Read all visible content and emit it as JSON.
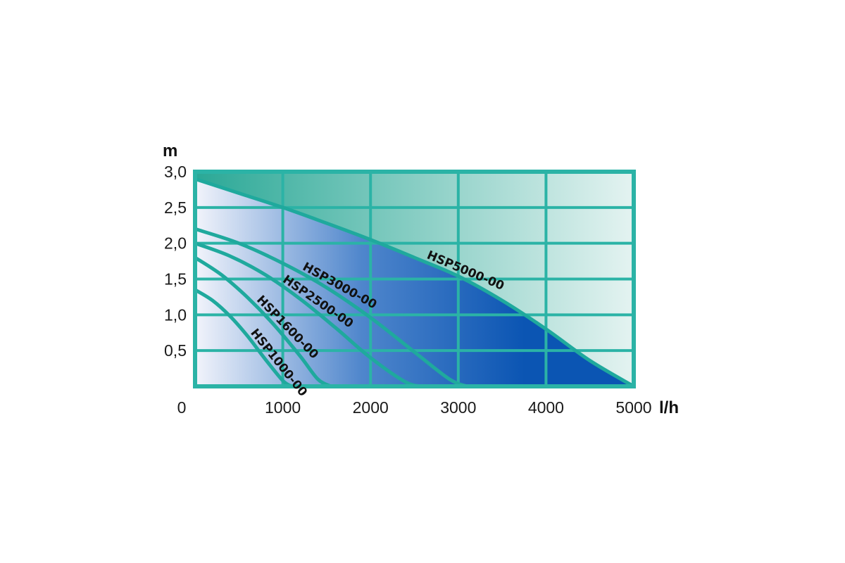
{
  "chart_data": {
    "type": "line",
    "title": "",
    "xlabel": "l/h",
    "ylabel": "m",
    "xlim": [
      0,
      5000
    ],
    "ylim": [
      0,
      3.0
    ],
    "origin_label": "0",
    "x_ticks": [
      {
        "value": 1000,
        "label": "1000"
      },
      {
        "value": 2000,
        "label": "2000"
      },
      {
        "value": 3000,
        "label": "3000"
      },
      {
        "value": 4000,
        "label": "4000"
      },
      {
        "value": 5000,
        "label": "5000"
      }
    ],
    "y_ticks": [
      {
        "value": 0.5,
        "label": "0,5"
      },
      {
        "value": 1.0,
        "label": "1,0"
      },
      {
        "value": 1.5,
        "label": "1,5"
      },
      {
        "value": 2.0,
        "label": "2,0"
      },
      {
        "value": 2.5,
        "label": "2,5"
      },
      {
        "value": 3.0,
        "label": "3,0"
      }
    ],
    "grid": true,
    "series": [
      {
        "name": "HSP1000-00",
        "label_at": 580,
        "points": [
          [
            0,
            1.35
          ],
          [
            200,
            1.2
          ],
          [
            400,
            0.98
          ],
          [
            600,
            0.7
          ],
          [
            800,
            0.38
          ],
          [
            1000,
            0.08
          ],
          [
            1100,
            0
          ]
        ]
      },
      {
        "name": "HSP1600-00",
        "label_at": 650,
        "points": [
          [
            0,
            1.8
          ],
          [
            300,
            1.56
          ],
          [
            600,
            1.24
          ],
          [
            900,
            0.86
          ],
          [
            1200,
            0.42
          ],
          [
            1400,
            0.1
          ],
          [
            1550,
            0
          ]
        ]
      },
      {
        "name": "HSP2500-00",
        "label_at": 950,
        "points": [
          [
            0,
            2.0
          ],
          [
            400,
            1.82
          ],
          [
            800,
            1.56
          ],
          [
            1200,
            1.22
          ],
          [
            1600,
            0.82
          ],
          [
            2000,
            0.4
          ],
          [
            2400,
            0.06
          ],
          [
            2600,
            0
          ]
        ]
      },
      {
        "name": "HSP3000-00",
        "label_at": 1180,
        "points": [
          [
            0,
            2.2
          ],
          [
            500,
            2.0
          ],
          [
            1000,
            1.72
          ],
          [
            1500,
            1.38
          ],
          [
            2000,
            0.96
          ],
          [
            2500,
            0.48
          ],
          [
            2900,
            0.1
          ],
          [
            3100,
            0
          ]
        ]
      },
      {
        "name": "HSP5000-00",
        "label_at": 2600,
        "points": [
          [
            0,
            2.9
          ],
          [
            500,
            2.7
          ],
          [
            1000,
            2.5
          ],
          [
            1500,
            2.28
          ],
          [
            2000,
            2.05
          ],
          [
            2500,
            1.8
          ],
          [
            3000,
            1.54
          ],
          [
            3500,
            1.2
          ],
          [
            4000,
            0.8
          ],
          [
            4500,
            0.36
          ],
          [
            5000,
            0
          ]
        ]
      }
    ],
    "colors": {
      "frame": "#2bb3a6",
      "curve": "#1fa99d",
      "under_dark": "#0b55b3",
      "under_mid": "#4f86cc",
      "under_light": "#f2f4fb",
      "over_dark": "#2aa896",
      "over_light": "#e4f3f1"
    }
  }
}
